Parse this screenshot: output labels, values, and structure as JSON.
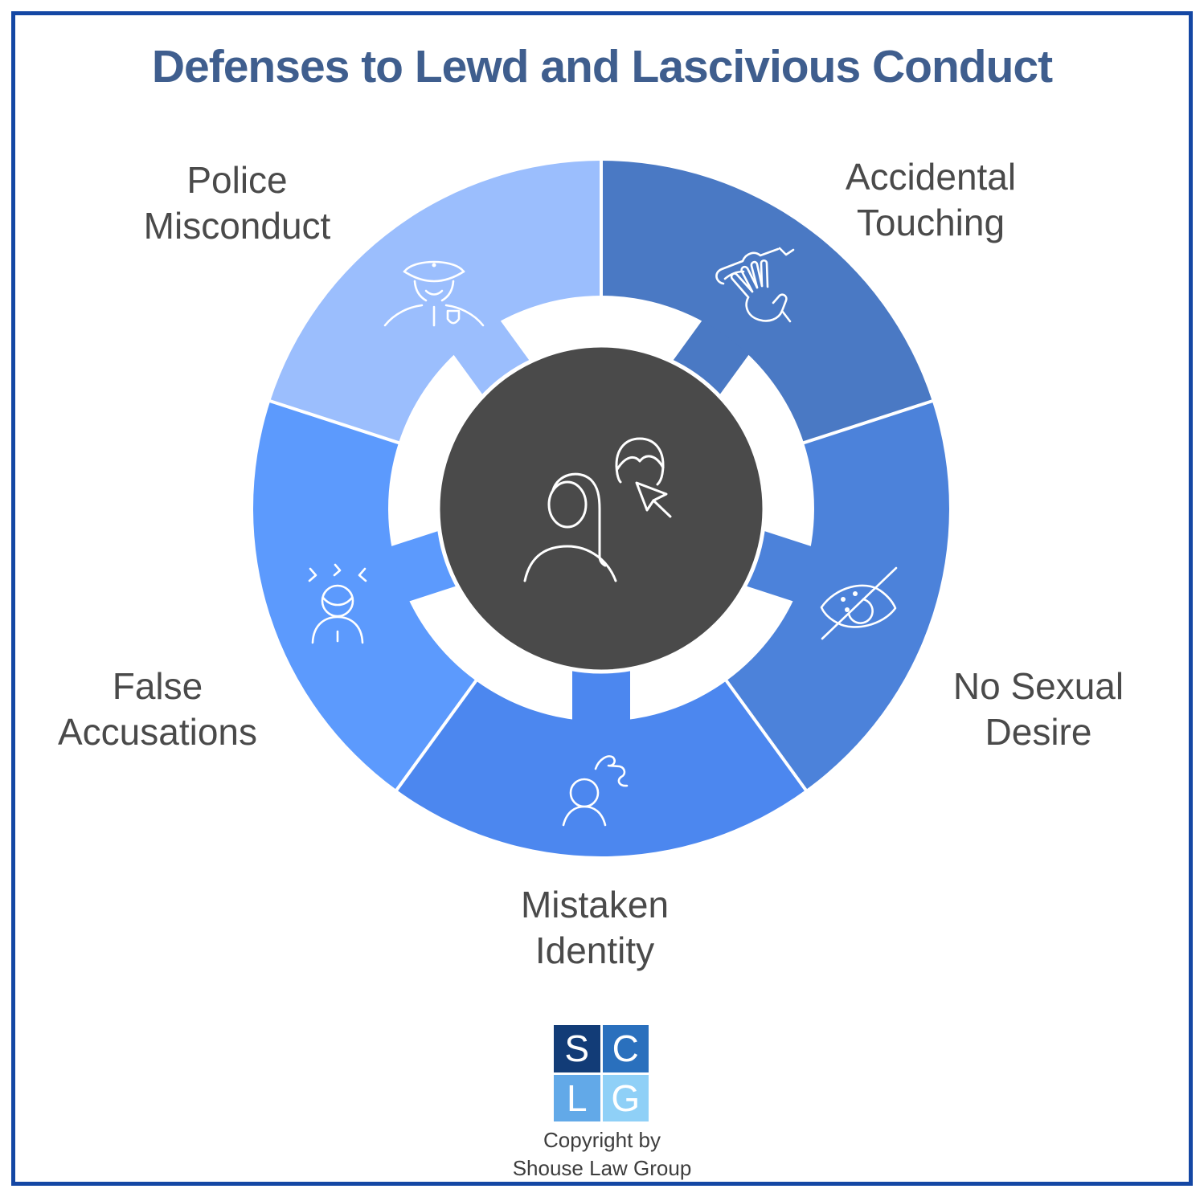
{
  "title": "Defenses to Lewd and Lascivious Conduct",
  "chart_data": {
    "type": "pie",
    "variant": "donut-infographic-5-equal-segments-with-spokes",
    "title": "Defenses to Lewd and Lascivious Conduct",
    "legend_position": "labels-around-ring",
    "segments": [
      {
        "label": "Accidental Touching",
        "value": 20,
        "color": "#4a79c4",
        "icon": "clapping-hands-icon",
        "start_angle": 0,
        "end_angle": 72
      },
      {
        "label": "No Sexual Desire",
        "value": 20,
        "color": "#4c82da",
        "icon": "eye-slash-icon",
        "start_angle": 72,
        "end_angle": 144
      },
      {
        "label": "Mistaken Identity",
        "value": 20,
        "color": "#4c87ef",
        "icon": "person-question-icon",
        "start_angle": 144,
        "end_angle": 216
      },
      {
        "label": "False Accusations",
        "value": 20,
        "color": "#5c9afd",
        "icon": "stressed-person-icon",
        "start_angle": 216,
        "end_angle": 288
      },
      {
        "label": "Police Misconduct",
        "value": 20,
        "color": "#9bbefd",
        "icon": "police-officer-icon",
        "start_angle": 288,
        "end_angle": 360
      }
    ],
    "center": {
      "fill": "#4a4a4a",
      "icon": "woman-man-cursor-icon",
      "ring_gap_color": "#ffffff"
    }
  },
  "logo": {
    "squares": [
      {
        "letter": "S",
        "color": "#123c77"
      },
      {
        "letter": "C",
        "color": "#2a70bd"
      },
      {
        "letter": "L",
        "color": "#62a9e8"
      },
      {
        "letter": "G",
        "color": "#8fd0f7"
      }
    ],
    "copyright": [
      "Copyright by",
      "Shouse Law Group"
    ]
  },
  "colors": {
    "title": "#3f5e8e",
    "labels": "#4a4a4a",
    "frame_border": "#1447a4",
    "background": "#ffffff",
    "icon_stroke": "#ffffff"
  }
}
